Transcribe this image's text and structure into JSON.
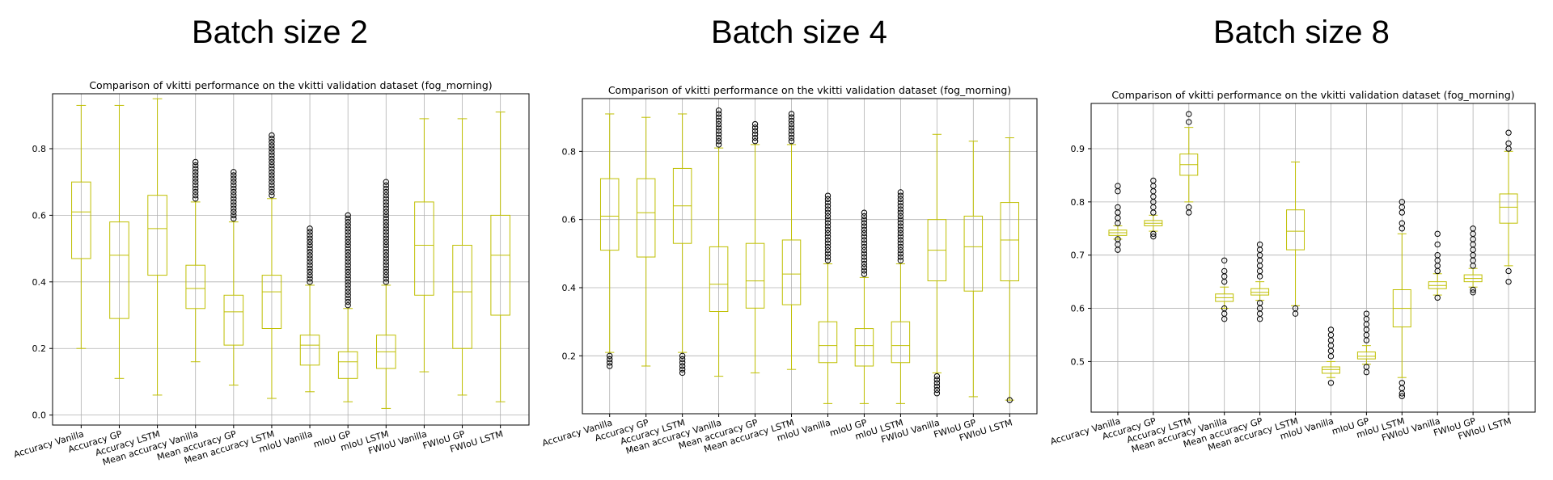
{
  "panel_titles": [
    "Batch size 2",
    "Batch size 4",
    "Batch size 8"
  ],
  "colors": {
    "box": "#bfbf00",
    "grid": "#b0b0b0",
    "outlier": "#000000",
    "axis": "#000000"
  },
  "chart_data": [
    {
      "type": "box",
      "title": "Comparison of vkitti performance on the vkitti validation dataset (fog_morning)",
      "categories": [
        "Accuracy Vanilla",
        "Accuracy GP",
        "Accuracy LSTM",
        "Mean accuracy Vanilla",
        "Mean accuracy GP",
        "Mean accuracy LSTM",
        "mIoU Vanilla",
        "mIoU GP",
        "mIoU LSTM",
        "FWIoU Vanilla",
        "FWIoU GP",
        "FWIoU LSTM"
      ],
      "ylim": [
        -0.03,
        0.965
      ],
      "yticks": [
        0.0,
        0.2,
        0.4,
        0.6,
        0.8
      ],
      "grid": true,
      "boxes": [
        {
          "wlo": 0.2,
          "q1": 0.47,
          "med": 0.61,
          "q3": 0.7,
          "whi": 0.93,
          "outliers": []
        },
        {
          "wlo": 0.11,
          "q1": 0.29,
          "med": 0.48,
          "q3": 0.58,
          "whi": 0.93,
          "outliers": []
        },
        {
          "wlo": 0.06,
          "q1": 0.42,
          "med": 0.56,
          "q3": 0.66,
          "whi": 0.95,
          "outliers": []
        },
        {
          "wlo": 0.16,
          "q1": 0.32,
          "med": 0.38,
          "q3": 0.45,
          "whi": 0.64,
          "outliers": [
            0.65,
            0.66,
            0.67,
            0.68,
            0.69,
            0.7,
            0.71,
            0.72,
            0.73,
            0.74,
            0.75,
            0.76
          ]
        },
        {
          "wlo": 0.09,
          "q1": 0.21,
          "med": 0.31,
          "q3": 0.36,
          "whi": 0.58,
          "outliers": [
            0.59,
            0.6,
            0.61,
            0.62,
            0.63,
            0.64,
            0.65,
            0.66,
            0.67,
            0.68,
            0.69,
            0.7,
            0.71,
            0.72,
            0.73
          ]
        },
        {
          "wlo": 0.05,
          "q1": 0.26,
          "med": 0.37,
          "q3": 0.42,
          "whi": 0.65,
          "outliers": [
            0.66,
            0.67,
            0.68,
            0.69,
            0.7,
            0.71,
            0.72,
            0.73,
            0.74,
            0.75,
            0.76,
            0.77,
            0.78,
            0.79,
            0.8,
            0.81,
            0.82,
            0.83,
            0.84
          ]
        },
        {
          "wlo": 0.07,
          "q1": 0.15,
          "med": 0.21,
          "q3": 0.24,
          "whi": 0.39,
          "outliers": [
            0.4,
            0.41,
            0.42,
            0.43,
            0.44,
            0.45,
            0.46,
            0.47,
            0.48,
            0.49,
            0.5,
            0.51,
            0.52,
            0.53,
            0.54,
            0.55,
            0.56
          ]
        },
        {
          "wlo": 0.04,
          "q1": 0.11,
          "med": 0.16,
          "q3": 0.19,
          "whi": 0.32,
          "outliers": [
            0.33,
            0.34,
            0.35,
            0.36,
            0.37,
            0.38,
            0.39,
            0.4,
            0.41,
            0.42,
            0.43,
            0.44,
            0.45,
            0.46,
            0.47,
            0.48,
            0.49,
            0.5,
            0.51,
            0.52,
            0.53,
            0.54,
            0.55,
            0.56,
            0.57,
            0.58,
            0.59,
            0.6
          ]
        },
        {
          "wlo": 0.02,
          "q1": 0.14,
          "med": 0.19,
          "q3": 0.24,
          "whi": 0.39,
          "outliers": [
            0.4,
            0.41,
            0.42,
            0.43,
            0.44,
            0.45,
            0.46,
            0.47,
            0.48,
            0.49,
            0.5,
            0.51,
            0.52,
            0.53,
            0.54,
            0.55,
            0.56,
            0.57,
            0.58,
            0.59,
            0.6,
            0.61,
            0.62,
            0.63,
            0.64,
            0.65,
            0.66,
            0.67,
            0.68,
            0.69,
            0.7
          ]
        },
        {
          "wlo": 0.13,
          "q1": 0.36,
          "med": 0.51,
          "q3": 0.64,
          "whi": 0.89,
          "outliers": []
        },
        {
          "wlo": 0.06,
          "q1": 0.2,
          "med": 0.37,
          "q3": 0.51,
          "whi": 0.89,
          "outliers": []
        },
        {
          "wlo": 0.04,
          "q1": 0.3,
          "med": 0.48,
          "q3": 0.6,
          "whi": 0.91,
          "outliers": []
        }
      ]
    },
    {
      "type": "box",
      "title": "Comparison of vkitti performance on the vkitti validation dataset (fog_morning)",
      "categories": [
        "Accuracy Vanilla",
        "Accuracy GP",
        "Accuracy LSTM",
        "Mean accuracy Vanilla",
        "Mean accuracy GP",
        "Mean accuracy LSTM",
        "mIoU Vanilla",
        "mIoU GP",
        "mIoU LSTM",
        "FWIoU Vanilla",
        "FWIoU GP",
        "FWIoU LSTM"
      ],
      "ylim": [
        0.03,
        0.955
      ],
      "yticks": [
        0.2,
        0.4,
        0.6,
        0.8
      ],
      "grid": true,
      "boxes": [
        {
          "wlo": 0.21,
          "q1": 0.51,
          "med": 0.61,
          "q3": 0.72,
          "whi": 0.91,
          "outliers": [
            0.17,
            0.18,
            0.19,
            0.2
          ]
        },
        {
          "wlo": 0.17,
          "q1": 0.49,
          "med": 0.62,
          "q3": 0.72,
          "whi": 0.9,
          "outliers": []
        },
        {
          "wlo": 0.21,
          "q1": 0.53,
          "med": 0.64,
          "q3": 0.75,
          "whi": 0.91,
          "outliers": [
            0.15,
            0.16,
            0.17,
            0.18,
            0.19,
            0.2
          ]
        },
        {
          "wlo": 0.14,
          "q1": 0.33,
          "med": 0.41,
          "q3": 0.52,
          "whi": 0.81,
          "outliers": [
            0.82,
            0.83,
            0.84,
            0.85,
            0.86,
            0.87,
            0.88,
            0.89,
            0.9,
            0.91,
            0.92
          ]
        },
        {
          "wlo": 0.15,
          "q1": 0.34,
          "med": 0.42,
          "q3": 0.53,
          "whi": 0.82,
          "outliers": [
            0.83,
            0.84,
            0.85,
            0.86,
            0.87,
            0.88
          ]
        },
        {
          "wlo": 0.16,
          "q1": 0.35,
          "med": 0.44,
          "q3": 0.54,
          "whi": 0.82,
          "outliers": [
            0.83,
            0.84,
            0.85,
            0.86,
            0.87,
            0.88,
            0.89,
            0.9,
            0.91
          ]
        },
        {
          "wlo": 0.06,
          "q1": 0.18,
          "med": 0.23,
          "q3": 0.3,
          "whi": 0.47,
          "outliers": [
            0.48,
            0.49,
            0.5,
            0.51,
            0.52,
            0.53,
            0.54,
            0.55,
            0.56,
            0.57,
            0.58,
            0.59,
            0.6,
            0.61,
            0.62,
            0.63,
            0.64,
            0.65,
            0.66,
            0.67
          ]
        },
        {
          "wlo": 0.06,
          "q1": 0.17,
          "med": 0.23,
          "q3": 0.28,
          "whi": 0.43,
          "outliers": [
            0.44,
            0.45,
            0.46,
            0.47,
            0.48,
            0.49,
            0.5,
            0.51,
            0.52,
            0.53,
            0.54,
            0.55,
            0.56,
            0.57,
            0.58,
            0.59,
            0.6,
            0.61,
            0.62
          ]
        },
        {
          "wlo": 0.06,
          "q1": 0.18,
          "med": 0.23,
          "q3": 0.3,
          "whi": 0.47,
          "outliers": [
            0.48,
            0.49,
            0.5,
            0.51,
            0.52,
            0.53,
            0.54,
            0.55,
            0.56,
            0.57,
            0.58,
            0.59,
            0.6,
            0.61,
            0.62,
            0.63,
            0.64,
            0.65,
            0.66,
            0.67,
            0.68
          ]
        },
        {
          "wlo": 0.15,
          "q1": 0.42,
          "med": 0.51,
          "q3": 0.6,
          "whi": 0.85,
          "outliers": [
            0.09,
            0.1,
            0.11,
            0.12,
            0.13,
            0.14
          ]
        },
        {
          "wlo": 0.08,
          "q1": 0.39,
          "med": 0.52,
          "q3": 0.61,
          "whi": 0.83,
          "outliers": []
        },
        {
          "wlo": 0.07,
          "q1": 0.42,
          "med": 0.54,
          "q3": 0.65,
          "whi": 0.84,
          "outliers": [
            0.07
          ]
        }
      ]
    },
    {
      "type": "box",
      "title": "Comparison of vkitti performance on the vkitti validation dataset (fog_morning)",
      "categories": [
        "Accuracy Vanilla",
        "Accuracy GP",
        "Accuracy LSTM",
        "Mean accuracy Vanilla",
        "Mean accuracy GP",
        "Mean accuracy LSTM",
        "mIoU Vanilla",
        "mIoU GP",
        "mIoU LSTM",
        "FWIoU Vanilla",
        "FWIoU GP",
        "FWIoU LSTM"
      ],
      "ylim": [
        0.405,
        0.985
      ],
      "yticks": [
        0.5,
        0.6,
        0.7,
        0.8,
        0.9
      ],
      "grid": true,
      "boxes": [
        {
          "wlo": 0.73,
          "q1": 0.737,
          "med": 0.742,
          "q3": 0.747,
          "whi": 0.755,
          "outliers": [
            0.71,
            0.72,
            0.73,
            0.76,
            0.77,
            0.78,
            0.79,
            0.82,
            0.83
          ]
        },
        {
          "wlo": 0.745,
          "q1": 0.755,
          "med": 0.76,
          "q3": 0.765,
          "whi": 0.775,
          "outliers": [
            0.735,
            0.74,
            0.78,
            0.79,
            0.8,
            0.81,
            0.82,
            0.83,
            0.84
          ]
        },
        {
          "wlo": 0.8,
          "q1": 0.85,
          "med": 0.87,
          "q3": 0.89,
          "whi": 0.94,
          "outliers": [
            0.78,
            0.79,
            0.95,
            0.965
          ]
        },
        {
          "wlo": 0.6,
          "q1": 0.613,
          "med": 0.62,
          "q3": 0.627,
          "whi": 0.64,
          "outliers": [
            0.58,
            0.59,
            0.6,
            0.65,
            0.66,
            0.67,
            0.69
          ]
        },
        {
          "wlo": 0.615,
          "q1": 0.625,
          "med": 0.63,
          "q3": 0.637,
          "whi": 0.65,
          "outliers": [
            0.58,
            0.59,
            0.6,
            0.61,
            0.66,
            0.67,
            0.68,
            0.69,
            0.7,
            0.71,
            0.72
          ]
        },
        {
          "wlo": 0.605,
          "q1": 0.71,
          "med": 0.745,
          "q3": 0.785,
          "whi": 0.875,
          "outliers": [
            0.59,
            0.6
          ]
        },
        {
          "wlo": 0.47,
          "q1": 0.478,
          "med": 0.485,
          "q3": 0.49,
          "whi": 0.5,
          "outliers": [
            0.46,
            0.51,
            0.52,
            0.53,
            0.54,
            0.55,
            0.56
          ]
        },
        {
          "wlo": 0.495,
          "q1": 0.505,
          "med": 0.51,
          "q3": 0.518,
          "whi": 0.53,
          "outliers": [
            0.48,
            0.49,
            0.54,
            0.55,
            0.56,
            0.57,
            0.58,
            0.59
          ]
        },
        {
          "wlo": 0.47,
          "q1": 0.565,
          "med": 0.6,
          "q3": 0.635,
          "whi": 0.74,
          "outliers": [
            0.435,
            0.44,
            0.45,
            0.46,
            0.75,
            0.76,
            0.78,
            0.79,
            0.8
          ]
        },
        {
          "wlo": 0.625,
          "q1": 0.637,
          "med": 0.643,
          "q3": 0.65,
          "whi": 0.665,
          "outliers": [
            0.62,
            0.67,
            0.68,
            0.69,
            0.7,
            0.72,
            0.74
          ]
        },
        {
          "wlo": 0.64,
          "q1": 0.65,
          "med": 0.656,
          "q3": 0.663,
          "whi": 0.675,
          "outliers": [
            0.63,
            0.635,
            0.68,
            0.69,
            0.7,
            0.71,
            0.72,
            0.73,
            0.74,
            0.75
          ]
        },
        {
          "wlo": 0.68,
          "q1": 0.76,
          "med": 0.79,
          "q3": 0.815,
          "whi": 0.895,
          "outliers": [
            0.65,
            0.67,
            0.9,
            0.91,
            0.93
          ]
        }
      ]
    }
  ]
}
